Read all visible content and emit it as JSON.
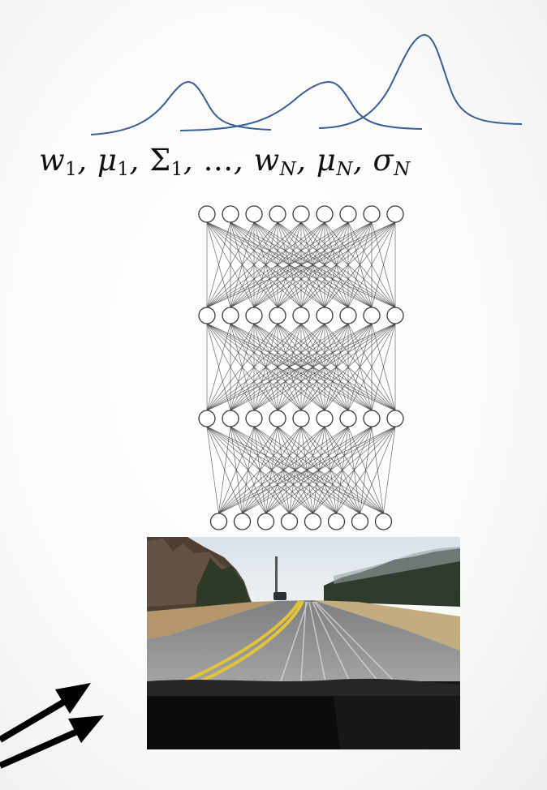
{
  "formula": {
    "w": "w",
    "mu": "μ",
    "Sigma": "Σ",
    "sigma": "σ",
    "sub_1": "1",
    "sub_N": "N",
    "sep": ", ",
    "ellipsis": "…"
  },
  "gaussians": [
    {
      "label": "component-1",
      "peak": "low"
    },
    {
      "label": "component-2",
      "peak": "medium"
    },
    {
      "label": "component-3",
      "peak": "high"
    }
  ],
  "network": {
    "layers": [
      {
        "name": "input-layer",
        "nodes": 8
      },
      {
        "name": "hidden-layer-1",
        "nodes": 9
      },
      {
        "name": "hidden-layer-2",
        "nodes": 9
      },
      {
        "name": "output-layer",
        "nodes": 9
      }
    ]
  },
  "road_image": {
    "scene": "road-dashcam"
  },
  "colors": {
    "curve": "#3a5f95",
    "network": "#3a3a3a",
    "arrow": "#000000"
  }
}
